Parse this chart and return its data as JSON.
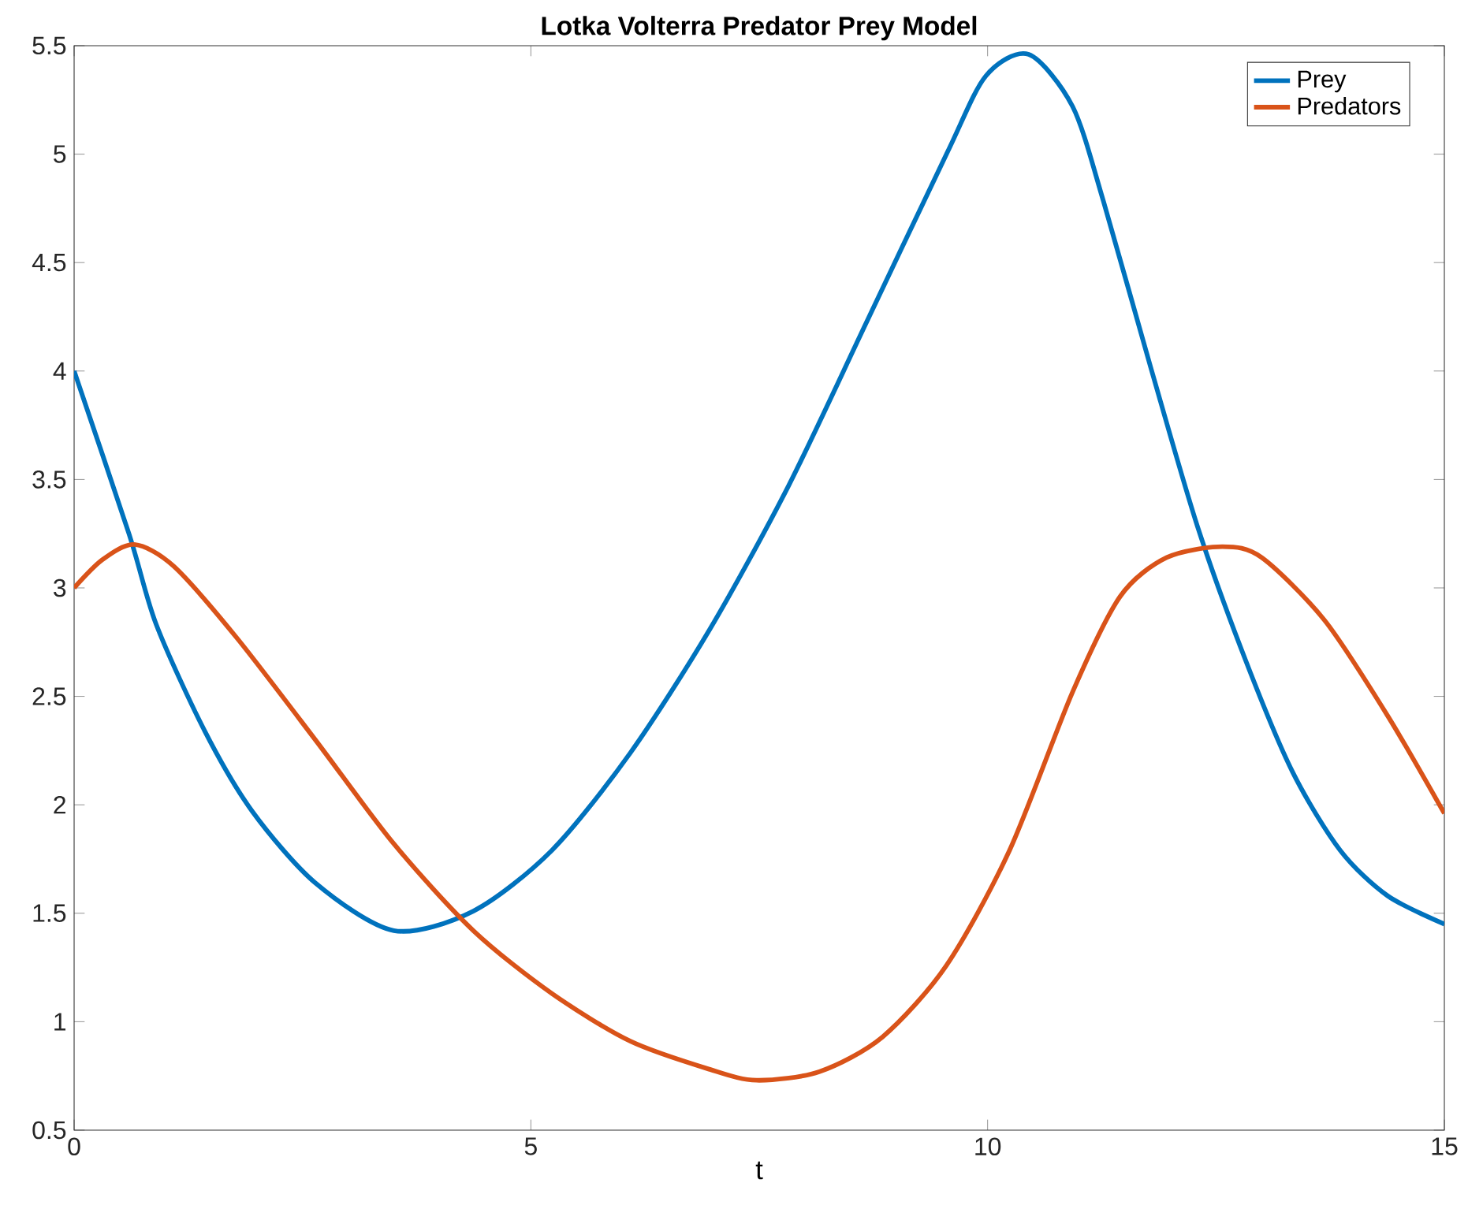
{
  "chart_data": {
    "type": "line",
    "title": "Lotka Volterra Predator Prey Model",
    "xlabel": "t",
    "xlim": [
      0,
      15
    ],
    "ylim": [
      0.5,
      5.5
    ],
    "xticks": [
      0,
      5,
      10,
      15
    ],
    "yticks": [
      0.5,
      1,
      1.5,
      2,
      2.5,
      3,
      3.5,
      4,
      4.5,
      5,
      5.5
    ],
    "legend": "top right",
    "marker": "none",
    "line_style": "solid",
    "series": [
      {
        "name": "Prey",
        "color": "#0072bd",
        "x": [
          0,
          0.6,
          0.9,
          1.43,
          1.95,
          2.64,
          3.5,
          4.37,
          5.23,
          6.09,
          6.96,
          7.82,
          8.68,
          9.55,
          9.98,
          10.45,
          10.93,
          11.27,
          11.79,
          12.3,
          12.83,
          13.34,
          13.86,
          14.38,
          15
        ],
        "values": [
          4.0,
          3.25,
          2.83,
          2.34,
          1.97,
          1.64,
          1.42,
          1.51,
          1.79,
          2.24,
          2.81,
          3.47,
          4.23,
          5.0,
          5.36,
          5.46,
          5.22,
          4.78,
          4.01,
          3.28,
          2.66,
          2.15,
          1.79,
          1.58,
          1.45
        ]
      },
      {
        "name": "Predators",
        "color": "#d95319",
        "x": [
          0,
          0.31,
          0.66,
          1.09,
          1.78,
          2.64,
          3.5,
          4.37,
          5.23,
          6.09,
          6.96,
          7.47,
          8.16,
          8.85,
          9.55,
          10.24,
          10.93,
          11.45,
          11.96,
          12.57,
          13.0,
          13.69,
          14.38,
          15
        ],
        "values": [
          3.0,
          3.13,
          3.2,
          3.1,
          2.77,
          2.3,
          1.82,
          1.42,
          1.13,
          0.91,
          0.78,
          0.73,
          0.77,
          0.93,
          1.26,
          1.79,
          2.52,
          2.96,
          3.14,
          3.19,
          3.14,
          2.85,
          2.41,
          1.96
        ]
      }
    ]
  }
}
